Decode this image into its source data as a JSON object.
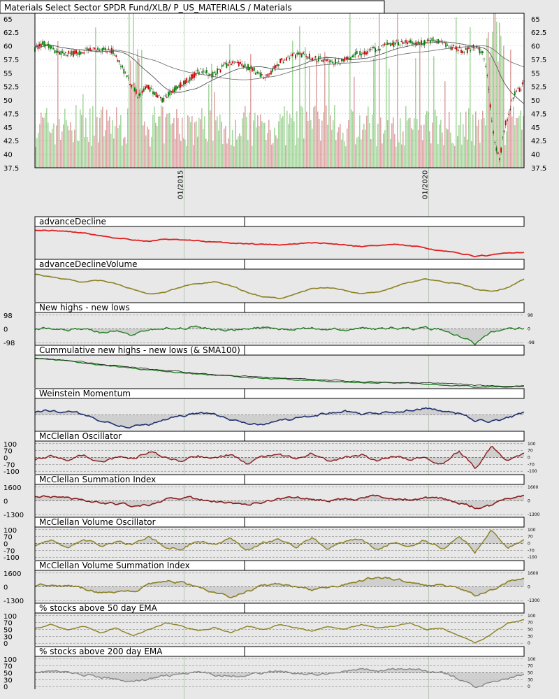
{
  "main_title": "Materials Select Sector SPDR Fund/XLB/ P_US_MATERIALS / Materials",
  "x_axis": {
    "dates": [
      "01/2015",
      "01/2020"
    ]
  },
  "colors": {
    "up_candle": "#008000",
    "down_candle": "#cc0000",
    "vol_up": "#a8d8a0",
    "vol_down": "#e0a8a8",
    "advance_decline": "#e02020",
    "olive": "#8b8020",
    "new_highs_lows": "#208020",
    "momentum": "#203070",
    "mcclellan": "#8b1a1a",
    "gray_line": "#888888",
    "fill": "#c8c8c8",
    "background": "#e8e8e8",
    "plot_bg": "#ffffff"
  },
  "chart_data": [
    {
      "type": "candlestick",
      "title": "Materials Select Sector SPDR Fund/XLB/ P_US_MATERIALS / Materials",
      "ylim": [
        37.5,
        66
      ],
      "y_ticks": [
        "65",
        "62.5",
        "60",
        "57.5",
        "55",
        "52.5",
        "50",
        "47.5",
        "45",
        "42.5",
        "40",
        "37.5"
      ],
      "x_labels": [
        "01/2015",
        "01/2020"
      ],
      "price_anchors": [
        [
          0,
          59.5
        ],
        [
          0.02,
          60.5
        ],
        [
          0.05,
          58.5
        ],
        [
          0.08,
          58.5
        ],
        [
          0.12,
          59.5
        ],
        [
          0.16,
          59
        ],
        [
          0.19,
          54
        ],
        [
          0.21,
          51
        ],
        [
          0.23,
          52.5
        ],
        [
          0.26,
          50
        ],
        [
          0.3,
          53
        ],
        [
          0.34,
          55.5
        ],
        [
          0.36,
          54.5
        ],
        [
          0.4,
          57
        ],
        [
          0.44,
          56
        ],
        [
          0.47,
          54
        ],
        [
          0.5,
          57
        ],
        [
          0.54,
          58.5
        ],
        [
          0.58,
          57.5
        ],
        [
          0.62,
          57
        ],
        [
          0.66,
          58.5
        ],
        [
          0.7,
          59.5
        ],
        [
          0.74,
          60.5
        ],
        [
          0.78,
          60.5
        ],
        [
          0.82,
          61
        ],
        [
          0.86,
          59.5
        ],
        [
          0.88,
          59
        ],
        [
          0.9,
          60
        ],
        [
          0.92,
          58
        ],
        [
          0.93,
          50
        ],
        [
          0.94,
          42
        ],
        [
          0.95,
          39
        ],
        [
          0.96,
          45
        ],
        [
          0.98,
          51
        ],
        [
          1.0,
          53
        ]
      ],
      "volume_level": "background bars, green up / red down"
    },
    {
      "type": "line",
      "title": "advanceDecline",
      "series": [
        {
          "values": [
            0.9,
            0.88,
            0.85,
            0.8,
            0.72,
            0.65,
            0.6,
            0.55,
            0.62,
            0.58,
            0.56,
            0.52,
            0.5,
            0.48,
            0.46,
            0.45,
            0.47,
            0.5,
            0.48,
            0.45,
            0.4,
            0.42,
            0.45,
            0.4,
            0.35,
            0.25,
            0.18,
            0.1,
            0.12,
            0.2,
            0.22
          ]
        }
      ]
    },
    {
      "type": "line",
      "title": "advanceDeclineVolume",
      "series": [
        {
          "values": [
            0.85,
            0.75,
            0.7,
            0.6,
            0.65,
            0.55,
            0.4,
            0.25,
            0.3,
            0.45,
            0.55,
            0.6,
            0.5,
            0.3,
            0.15,
            0.1,
            0.25,
            0.4,
            0.45,
            0.35,
            0.25,
            0.3,
            0.45,
            0.6,
            0.7,
            0.6,
            0.55,
            0.4,
            0.3,
            0.45,
            0.7
          ]
        }
      ]
    },
    {
      "type": "area",
      "title": "New highs - new lows",
      "ytick_left": [
        "98",
        "0",
        "-98"
      ],
      "ytick_right": [
        "98",
        "0",
        "-98"
      ],
      "series": [
        {
          "values": [
            0.5,
            0.52,
            0.48,
            0.5,
            0.4,
            0.45,
            0.3,
            0.48,
            0.52,
            0.5,
            0.55,
            0.5,
            0.45,
            0.52,
            0.55,
            0.5,
            0.48,
            0.52,
            0.5,
            0.48,
            0.52,
            0.5,
            0.55,
            0.5,
            0.52,
            0.48,
            0.3,
            0.05,
            0.4,
            0.5,
            0.52
          ]
        }
      ]
    },
    {
      "type": "line",
      "title": "Cummulative new highs - new lows (& SMA100)",
      "series": [
        {
          "values": [
            0.9,
            0.87,
            0.82,
            0.76,
            0.7,
            0.65,
            0.6,
            0.55,
            0.5,
            0.46,
            0.42,
            0.38,
            0.35,
            0.32,
            0.29,
            0.27,
            0.25,
            0.22,
            0.2,
            0.18,
            0.17,
            0.16,
            0.15,
            0.14,
            0.12,
            0.1,
            0.06,
            0.02,
            0.03,
            0.04,
            0.05
          ]
        },
        {
          "values": [
            0.91,
            0.88,
            0.84,
            0.79,
            0.73,
            0.68,
            0.63,
            0.58,
            0.53,
            0.49,
            0.45,
            0.41,
            0.38,
            0.35,
            0.32,
            0.3,
            0.28,
            0.25,
            0.23,
            0.21,
            0.19,
            0.18,
            0.17,
            0.16,
            0.15,
            0.14,
            0.12,
            0.09,
            0.07,
            0.06,
            0.05
          ]
        }
      ]
    },
    {
      "type": "area",
      "title": "Weinstein Momentum",
      "series": [
        {
          "values": [
            0.6,
            0.65,
            0.6,
            0.5,
            0.3,
            0.2,
            0.15,
            0.2,
            0.35,
            0.45,
            0.55,
            0.5,
            0.35,
            0.25,
            0.2,
            0.3,
            0.4,
            0.45,
            0.55,
            0.6,
            0.5,
            0.55,
            0.6,
            0.65,
            0.7,
            0.65,
            0.55,
            0.35,
            0.3,
            0.4,
            0.55
          ]
        }
      ]
    },
    {
      "type": "area",
      "title": "McClellan Oscillator",
      "ytick_left": [
        "100",
        "70",
        "0",
        "-70",
        "-100"
      ],
      "ytick_right": [
        "100",
        "70",
        "0",
        "-70",
        "-100"
      ],
      "series": [
        {
          "values": [
            0.45,
            0.55,
            0.4,
            0.6,
            0.35,
            0.5,
            0.45,
            0.7,
            0.5,
            0.4,
            0.55,
            0.45,
            0.6,
            0.35,
            0.5,
            0.55,
            0.45,
            0.65,
            0.4,
            0.5,
            0.6,
            0.35,
            0.55,
            0.45,
            0.5,
            0.3,
            0.7,
            0.2,
            0.85,
            0.4,
            0.6
          ]
        }
      ]
    },
    {
      "type": "area",
      "title": "McClellan Summation Index",
      "ytick_left": [
        "1600",
        "0",
        "-1300"
      ],
      "ytick_right": [
        "1600",
        "0",
        "-1300"
      ],
      "series": [
        {
          "values": [
            0.65,
            0.6,
            0.55,
            0.5,
            0.45,
            0.4,
            0.35,
            0.4,
            0.55,
            0.6,
            0.55,
            0.5,
            0.45,
            0.4,
            0.45,
            0.55,
            0.6,
            0.55,
            0.5,
            0.55,
            0.6,
            0.65,
            0.6,
            0.55,
            0.6,
            0.55,
            0.45,
            0.3,
            0.35,
            0.55,
            0.65
          ]
        }
      ]
    },
    {
      "type": "area",
      "title": "McClellan Volume Oscillator",
      "ytick_left": [
        "100",
        "70",
        "0",
        "-70",
        "-100"
      ],
      "ytick_right": [
        "100",
        "70",
        "0",
        "-70",
        "-100"
      ],
      "series": [
        {
          "values": [
            0.45,
            0.6,
            0.35,
            0.65,
            0.4,
            0.55,
            0.45,
            0.7,
            0.4,
            0.35,
            0.6,
            0.45,
            0.65,
            0.3,
            0.55,
            0.6,
            0.4,
            0.7,
            0.35,
            0.55,
            0.65,
            0.3,
            0.55,
            0.45,
            0.6,
            0.35,
            0.75,
            0.25,
            0.9,
            0.4,
            0.6
          ]
        }
      ]
    },
    {
      "type": "area",
      "title": "McClellan Volume Summation Index",
      "ytick_left": [
        "1600",
        "0",
        "-1300"
      ],
      "ytick_right": [
        "1600",
        "0",
        "-1300"
      ],
      "series": [
        {
          "values": [
            0.55,
            0.6,
            0.55,
            0.45,
            0.35,
            0.3,
            0.35,
            0.55,
            0.7,
            0.65,
            0.5,
            0.3,
            0.2,
            0.35,
            0.55,
            0.6,
            0.5,
            0.4,
            0.5,
            0.6,
            0.7,
            0.8,
            0.75,
            0.65,
            0.55,
            0.6,
            0.45,
            0.25,
            0.4,
            0.65,
            0.75
          ]
        }
      ]
    },
    {
      "type": "line",
      "title": "% stocks above 50 day EMA",
      "ytick_left": [
        "100",
        "70",
        "50",
        "30",
        "0"
      ],
      "ytick_right": [
        "100",
        "70",
        "50",
        "30",
        "0"
      ],
      "series": [
        {
          "values": [
            0.55,
            0.65,
            0.5,
            0.6,
            0.4,
            0.55,
            0.3,
            0.5,
            0.7,
            0.6,
            0.45,
            0.55,
            0.4,
            0.6,
            0.5,
            0.65,
            0.55,
            0.45,
            0.6,
            0.5,
            0.65,
            0.55,
            0.6,
            0.7,
            0.5,
            0.55,
            0.3,
            0.1,
            0.35,
            0.7,
            0.8
          ]
        }
      ]
    },
    {
      "type": "area",
      "title": "% stocks above 200 day EMA",
      "ytick_left": [
        "100",
        "70",
        "50",
        "30",
        "0"
      ],
      "ytick_right": [
        "100",
        "70",
        "50",
        "30",
        "0"
      ],
      "series": [
        {
          "values": [
            0.55,
            0.55,
            0.5,
            0.45,
            0.35,
            0.3,
            0.25,
            0.3,
            0.4,
            0.45,
            0.5,
            0.45,
            0.4,
            0.45,
            0.5,
            0.55,
            0.5,
            0.45,
            0.5,
            0.55,
            0.6,
            0.55,
            0.6,
            0.6,
            0.55,
            0.5,
            0.3,
            0.1,
            0.2,
            0.35,
            0.45
          ]
        }
      ]
    }
  ]
}
